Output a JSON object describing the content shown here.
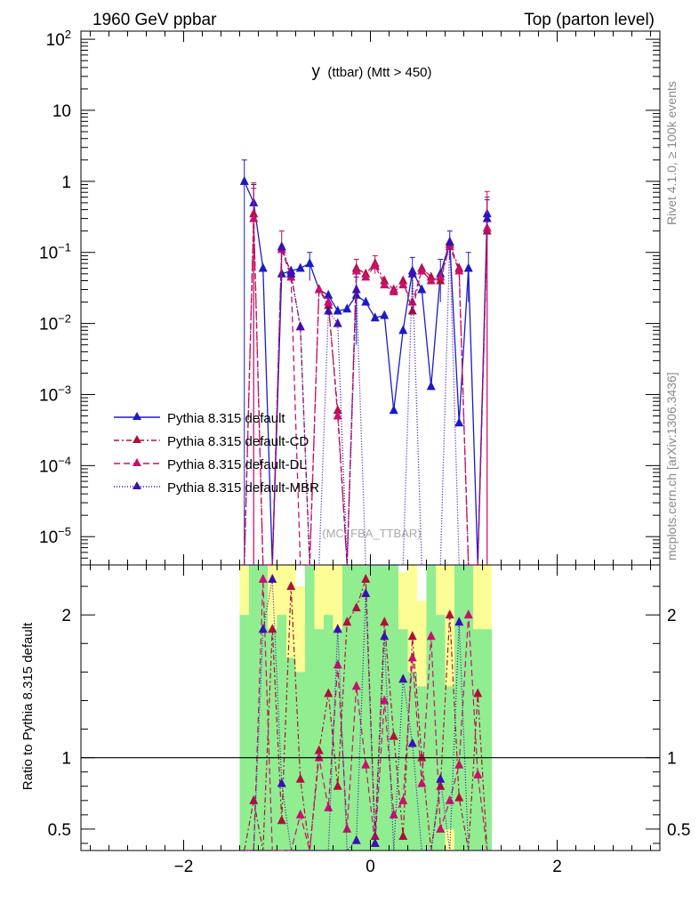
{
  "header": {
    "left_title": "1960 GeV ppbar",
    "right_title": "Top (parton level)"
  },
  "side_labels": {
    "rivet": "Rivet 4.1.0, ≥ 100k events",
    "mcplots": "mcplots.cern.ch [arXiv:1306.3436]"
  },
  "watermark": "(MC_FBA_TTBAR)",
  "chart_data": {
    "type": "line",
    "title_main": "y",
    "title_rest": "(ttbar) (Mtt > 450)",
    "xlabel": "",
    "ylabel_top": "",
    "ylabel_ratio": "Ratio to Pythia 8.315 default",
    "xlim": [
      -3.1,
      3.1
    ],
    "ylim_top": [
      4e-06,
      130
    ],
    "yscale_top": "log",
    "ylim_ratio": [
      0.35,
      2.35
    ],
    "x_ticks": [
      -2,
      0,
      2
    ],
    "x_tick_labels": [
      "−2",
      "0",
      "2"
    ],
    "top_y_ticks": [
      100,
      10,
      1,
      0.1,
      0.01,
      0.001,
      0.0001,
      1e-05
    ],
    "top_y_tick_labels": [
      {
        "base": "10",
        "exp": "2"
      },
      {
        "base": "10",
        "exp": ""
      },
      {
        "base": "1",
        "exp": ""
      },
      {
        "base": "10",
        "exp": "−1"
      },
      {
        "base": "10",
        "exp": "−2"
      },
      {
        "base": "10",
        "exp": "−3"
      },
      {
        "base": "10",
        "exp": "−4"
      },
      {
        "base": "10",
        "exp": "−5"
      }
    ],
    "ratio_y_ticks": [
      0.5,
      1,
      2
    ],
    "ratio_y_tick_labels": [
      "0.5",
      "1",
      "2"
    ],
    "x": [
      -1.35,
      -1.25,
      -1.15,
      -1.05,
      -0.95,
      -0.85,
      -0.75,
      -0.65,
      -0.55,
      -0.45,
      -0.35,
      -0.25,
      -0.15,
      -0.05,
      0.05,
      0.15,
      0.25,
      0.35,
      0.45,
      0.55,
      0.65,
      0.75,
      0.85,
      0.95,
      1.05,
      1.15,
      1.25
    ],
    "series": [
      {
        "name": "Pythia 8.315 default",
        "color": "#1a1ac8",
        "dash": "",
        "values": [
          1.0,
          0.5,
          0.06,
          0.0,
          0.05,
          0.055,
          0.06,
          0.07,
          0.03,
          0.025,
          0.015,
          0.016,
          0.025,
          0.02,
          0.012,
          0.013,
          0.0006,
          0.008,
          0.055,
          0.03,
          0.0013,
          0.05,
          0.14,
          0.0004,
          0.06,
          0.0,
          0.35
        ],
        "errors": [
          1.0,
          0.4,
          0.0,
          0.0,
          0.0,
          0.0,
          0.0,
          0.03,
          0.0,
          0.0,
          0.0,
          0.0,
          0.02,
          0.0,
          0.0,
          0.0,
          0.0,
          0.0,
          0.03,
          0.0,
          0.0,
          0.03,
          0.06,
          0.0,
          0.04,
          0.0,
          0.2
        ],
        "ratio": [
          1.0,
          1.0,
          1.0,
          1.0,
          1.0,
          1.0,
          1.0,
          1.0,
          1.0,
          1.0,
          1.0,
          1.0,
          1.0,
          1.0,
          1.0,
          1.0,
          1.0,
          1.0,
          1.0,
          1.0,
          1.0,
          1.0,
          1.0,
          1.0,
          1.0,
          1.0,
          1.0
        ]
      },
      {
        "name": "Pythia 8.315 default-CD",
        "color": "#b0103a",
        "dash": "6,3,2,3",
        "values": [
          0.0,
          0.35,
          0.0,
          0.0,
          0.12,
          0.05,
          0.009,
          0.0,
          0.03,
          0.018,
          0.0006,
          0.0,
          0.06,
          0.05,
          0.07,
          0.04,
          0.03,
          0.04,
          0.015,
          0.06,
          0.045,
          0.04,
          0.13,
          0.06,
          0.0,
          0.0,
          0.2
        ],
        "errors": [
          0.0,
          0.6,
          0.0,
          0.0,
          0.08,
          0.0,
          0.0,
          0.0,
          0.0,
          0.0,
          0.0,
          0.0,
          0.02,
          0.0,
          0.02,
          0.0,
          0.0,
          0.0,
          0.0,
          0.0,
          0.0,
          0.0,
          0.0,
          0.0,
          0.0,
          0.0,
          0.4
        ],
        "ratio": [
          null,
          0.7,
          null,
          1.9,
          0.56,
          2.2,
          0.85,
          null,
          1.05,
          1.45,
          0.8,
          1.95,
          2.05,
          2.25,
          0.45,
          1.95,
          1.15,
          0.45,
          1.85,
          1.0,
          null,
          0.8,
          2.0,
          0.72,
          null,
          1.45,
          null
        ]
      },
      {
        "name": "Pythia 8.315 default-DL",
        "color": "#c8106e",
        "dash": "7,4",
        "values": [
          0.0,
          0.3,
          0.0,
          0.0,
          0.11,
          0.045,
          0.0,
          0.0,
          0.03,
          0.02,
          0.0005,
          0.0,
          0.055,
          0.045,
          0.065,
          0.035,
          0.028,
          0.035,
          0.02,
          0.055,
          0.04,
          0.045,
          0.12,
          0.055,
          0.0,
          0.0,
          0.22
        ],
        "errors": [
          0.0,
          0.5,
          0.0,
          0.0,
          0.0,
          0.0,
          0.0,
          0.0,
          0.0,
          0.0,
          0.0,
          0.0,
          0.0,
          0.0,
          0.0,
          0.0,
          0.0,
          0.0,
          0.0,
          0.0,
          0.0,
          0.0,
          0.0,
          0.0,
          0.0,
          0.0,
          0.5
        ],
        "ratio": [
          null,
          null,
          2.25,
          null,
          null,
          null,
          0.6,
          null,
          1.0,
          0.65,
          1.65,
          0.5,
          1.5,
          0.95,
          0.4,
          1.4,
          0.6,
          0.7,
          1.7,
          0.82,
          1.85,
          0.5,
          0.7,
          0.95,
          2.0,
          0.88,
          null
        ]
      },
      {
        "name": "Pythia 8.315 default-MBR",
        "color": "#3a10b4",
        "dash": "1,2",
        "values": [
          0.0,
          0.0,
          0.0,
          0.0,
          0.12,
          0.05,
          0.009,
          0.0,
          0.0,
          0.015,
          0.01,
          0.0,
          0.03,
          0.0,
          0.0,
          0.0,
          0.0,
          0.0,
          0.05,
          0.0,
          0.0,
          0.0,
          0.14,
          0.0,
          0.0,
          0.0,
          0.3
        ],
        "errors": [
          0.0,
          0.0,
          0.0,
          0.0,
          0.0,
          0.0,
          0.0,
          0.0,
          0.0,
          0.0,
          0.0,
          0.0,
          0.0,
          0.0,
          0.0,
          0.0,
          0.0,
          0.0,
          0.0,
          0.0,
          0.0,
          0.0,
          0.0,
          0.0,
          0.0,
          0.0,
          0.0
        ],
        "ratio": [
          null,
          null,
          1.9,
          2.25,
          0.82,
          null,
          null,
          null,
          null,
          null,
          1.9,
          null,
          0.42,
          2.15,
          0.4,
          1.85,
          null,
          1.55,
          1.1,
          null,
          null,
          0.85,
          null,
          1.95,
          null,
          null,
          null
        ]
      }
    ],
    "ratio_band_yellow_top": [
      2.35,
      2.35,
      2.35,
      2.35,
      2.35,
      2.35,
      2.2,
      2.35,
      2.35,
      2.35,
      2.35,
      2.35,
      2.35,
      2.35,
      2.35,
      2.35,
      2.35,
      2.3,
      2.35,
      2.1,
      2.35,
      2.35,
      2.35,
      2.35,
      2.35,
      2.35,
      2.35
    ],
    "ratio_band_green_top": [
      2.0,
      2.35,
      2.35,
      1.9,
      2.0,
      1.7,
      1.6,
      2.35,
      1.9,
      2.0,
      1.9,
      2.35,
      2.35,
      2.35,
      2.35,
      2.35,
      2.35,
      1.9,
      1.6,
      1.5,
      2.35,
      2.0,
      1.5,
      2.35,
      2.35,
      1.9,
      1.9
    ],
    "ratio_band_green_bottom": [
      0.35,
      0.35,
      0.35,
      0.35,
      0.35,
      0.35,
      0.35,
      0.35,
      0.35,
      0.35,
      0.35,
      0.35,
      0.35,
      0.35,
      0.35,
      0.35,
      0.35,
      0.35,
      0.35,
      0.35,
      0.35,
      0.35,
      0.5,
      0.35,
      0.35,
      0.35,
      0.35
    ]
  },
  "legend": [
    {
      "label": "Pythia 8.315 default"
    },
    {
      "label": "Pythia 8.315 default-CD"
    },
    {
      "label": "Pythia 8.315 default-DL"
    },
    {
      "label": "Pythia 8.315 default-MBR"
    }
  ]
}
